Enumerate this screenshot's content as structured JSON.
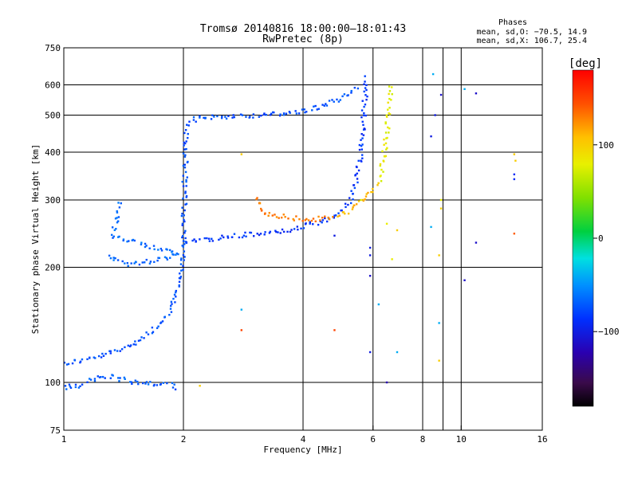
{
  "chart_data": {
    "type": "scatter",
    "title": "Tromsø 20140816 18:00:00–18:01:43",
    "subtitle": "RwPretec (8p)",
    "xlabel": "Frequency [MHz]",
    "ylabel": "Stationary phase Virtual Height [km]",
    "x_scale": "log",
    "y_scale": "log",
    "xlim": [
      1,
      16
    ],
    "ylim": [
      75,
      750
    ],
    "x_ticks": [
      1,
      2,
      4,
      6,
      8,
      10,
      16
    ],
    "x_tick_labels": [
      "1",
      "2",
      "4",
      "6",
      "8",
      "10",
      "16"
    ],
    "y_ticks": [
      75,
      100,
      200,
      300,
      400,
      500,
      600,
      750
    ],
    "y_tick_labels": [
      "75",
      "100",
      "200",
      "300",
      "400",
      "500",
      "600",
      "750"
    ],
    "grid_x": [
      2,
      4,
      6,
      8,
      9,
      10
    ],
    "grid_y": [
      100,
      200,
      300,
      400,
      500,
      600
    ],
    "grid": true,
    "phase_stats": {
      "title": "Phases",
      "line1": "mean, sd,O: −70.5, 14.9",
      "line2": "mean, sd,X: 106.7, 25.4"
    },
    "colorbar": {
      "label": "[deg]",
      "range": [
        -180,
        180
      ],
      "ticks": [
        100,
        0,
        -100
      ],
      "tick_labels": [
        "100",
        "0",
        "−100"
      ]
    },
    "traces": [
      {
        "phase": -75,
        "points": [
          [
            1.0,
            112
          ],
          [
            1.2,
            116
          ],
          [
            1.4,
            122
          ],
          [
            1.6,
            132
          ],
          [
            1.75,
            142
          ],
          [
            1.85,
            152
          ],
          [
            1.92,
            170
          ],
          [
            1.97,
            195
          ],
          [
            2.0,
            230
          ],
          [
            2.01,
            300
          ],
          [
            2.02,
            360
          ],
          [
            2.03,
            420
          ],
          [
            2.05,
            470
          ],
          [
            2.15,
            490
          ],
          [
            2.4,
            495
          ],
          [
            2.8,
            498
          ],
          [
            3.2,
            500
          ],
          [
            3.6,
            505
          ],
          [
            4.0,
            512
          ],
          [
            4.4,
            525
          ],
          [
            4.8,
            545
          ],
          [
            5.2,
            570
          ],
          [
            5.5,
            600
          ]
        ]
      },
      {
        "phase": -85,
        "points": [
          [
            2.0,
            232
          ],
          [
            2.3,
            236
          ],
          [
            2.6,
            240
          ],
          [
            2.9,
            243
          ],
          [
            3.2,
            245
          ],
          [
            3.6,
            249
          ],
          [
            4.0,
            255
          ],
          [
            4.4,
            262
          ],
          [
            4.8,
            270
          ],
          [
            5.1,
            285
          ],
          [
            5.3,
            305
          ],
          [
            5.45,
            335
          ],
          [
            5.55,
            380
          ],
          [
            5.62,
            430
          ],
          [
            5.67,
            480
          ],
          [
            5.72,
            540
          ],
          [
            5.76,
            600
          ],
          [
            5.78,
            640
          ]
        ]
      },
      {
        "phase": -65,
        "points": [
          [
            1.3,
            215
          ],
          [
            1.35,
            208
          ],
          [
            1.45,
            204
          ],
          [
            1.6,
            206
          ],
          [
            1.8,
            212
          ],
          [
            1.95,
            218
          ],
          [
            1.33,
            240
          ],
          [
            1.36,
            270
          ],
          [
            1.38,
            300
          ]
        ]
      },
      {
        "phase": -70,
        "points": [
          [
            1.0,
            97
          ],
          [
            1.1,
            98
          ],
          [
            1.2,
            102
          ],
          [
            1.3,
            104
          ],
          [
            1.45,
            101
          ],
          [
            1.6,
            99
          ],
          [
            1.8,
            100
          ],
          [
            1.95,
            96
          ]
        ]
      },
      {
        "phase": 130,
        "points": [
          [
            3.05,
            305
          ],
          [
            3.1,
            290
          ],
          [
            3.15,
            280
          ],
          [
            3.3,
            276
          ],
          [
            3.6,
            271
          ],
          [
            3.9,
            268
          ],
          [
            4.2,
            266
          ],
          [
            4.5,
            268
          ],
          [
            4.8,
            272
          ]
        ]
      },
      {
        "phase": 110,
        "points": [
          [
            4.9,
            272
          ],
          [
            5.2,
            280
          ],
          [
            5.5,
            292
          ],
          [
            5.9,
            310
          ],
          [
            6.2,
            335
          ]
        ]
      },
      {
        "phase": 80,
        "points": [
          [
            6.25,
            340
          ],
          [
            6.3,
            360
          ],
          [
            6.35,
            380
          ],
          [
            6.4,
            400
          ],
          [
            6.45,
            430
          ],
          [
            6.5,
            460
          ],
          [
            6.55,
            490
          ],
          [
            6.6,
            520
          ],
          [
            6.65,
            560
          ],
          [
            6.6,
            600
          ]
        ]
      }
    ],
    "sparse_points": [
      {
        "x": 6.5,
        "y": 260,
        "phase": 80
      },
      {
        "x": 6.7,
        "y": 210,
        "phase": 80
      },
      {
        "x": 8.6,
        "y": 500,
        "phase": -100
      },
      {
        "x": 8.5,
        "y": 640,
        "phase": -40
      },
      {
        "x": 8.9,
        "y": 565,
        "phase": -110
      },
      {
        "x": 8.9,
        "y": 300,
        "phase": 80
      },
      {
        "x": 8.9,
        "y": 285,
        "phase": 100
      },
      {
        "x": 8.4,
        "y": 440,
        "phase": -100
      },
      {
        "x": 10.2,
        "y": 585,
        "phase": -40
      },
      {
        "x": 10.9,
        "y": 570,
        "phase": -110
      },
      {
        "x": 10.9,
        "y": 232,
        "phase": -110
      },
      {
        "x": 10.2,
        "y": 185,
        "phase": -110
      },
      {
        "x": 13.6,
        "y": 395,
        "phase": 100
      },
      {
        "x": 13.7,
        "y": 380,
        "phase": 100
      },
      {
        "x": 13.6,
        "y": 350,
        "phase": -90
      },
      {
        "x": 13.6,
        "y": 340,
        "phase": -90
      },
      {
        "x": 13.6,
        "y": 245,
        "phase": 140
      },
      {
        "x": 8.4,
        "y": 255,
        "phase": -40
      },
      {
        "x": 2.8,
        "y": 395,
        "phase": 100
      },
      {
        "x": 2.8,
        "y": 155,
        "phase": -40
      },
      {
        "x": 2.8,
        "y": 137,
        "phase": 150
      },
      {
        "x": 2.2,
        "y": 98,
        "phase": 100
      },
      {
        "x": 4.8,
        "y": 137,
        "phase": 150
      },
      {
        "x": 4.8,
        "y": 242,
        "phase": -100
      },
      {
        "x": 5.9,
        "y": 225,
        "phase": -100
      },
      {
        "x": 5.9,
        "y": 215,
        "phase": -100
      },
      {
        "x": 5.9,
        "y": 190,
        "phase": -110
      },
      {
        "x": 5.9,
        "y": 120,
        "phase": -100
      },
      {
        "x": 6.2,
        "y": 160,
        "phase": -40
      },
      {
        "x": 6.9,
        "y": 120,
        "phase": -40
      },
      {
        "x": 6.5,
        "y": 100,
        "phase": -120
      },
      {
        "x": 6.9,
        "y": 250,
        "phase": 100
      },
      {
        "x": 8.8,
        "y": 114,
        "phase": 100
      },
      {
        "x": 8.8,
        "y": 143,
        "phase": -40
      },
      {
        "x": 8.8,
        "y": 215,
        "phase": 100
      },
      {
        "x": 5.6,
        "y": 300,
        "phase": 80
      }
    ]
  }
}
